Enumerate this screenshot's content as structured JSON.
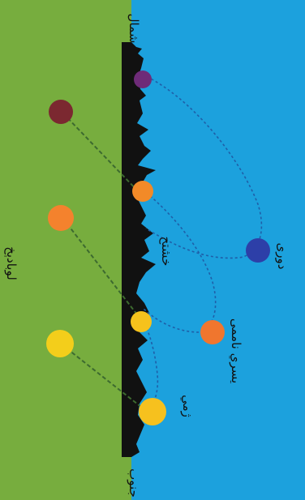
{
  "colors": {
    "sky": "#1ca1dd",
    "ground": "#77ad3e",
    "skyline": "#111111",
    "sky_path": "#1f5fa8",
    "ground_path": "#3d6a2f"
  },
  "labels": {
    "north": "شمال",
    "south": "جنوب",
    "outer": "دوری",
    "middle": "خشتح",
    "ground_band": "لوبادېخ",
    "mid_sky": "يسري ناممى",
    "lower_sky": "ژمي"
  },
  "dots": [
    {
      "name": "purple-dot",
      "color": "#6e2b78"
    },
    {
      "name": "maroon-dot",
      "color": "#7b2830"
    },
    {
      "name": "orange-dot-horizon-upper",
      "color": "#f28a28"
    },
    {
      "name": "navy-dot",
      "color": "#2d3fa8"
    },
    {
      "name": "orange-dot-ground",
      "color": "#f4822d"
    },
    {
      "name": "orange-dot-sky",
      "color": "#f0762e"
    },
    {
      "name": "yellow-dot-horizon",
      "color": "#f6c21c"
    },
    {
      "name": "yellow-dot-ground",
      "color": "#f3ce1b"
    },
    {
      "name": "yellow-dot-sky",
      "color": "#f6c11e"
    }
  ]
}
